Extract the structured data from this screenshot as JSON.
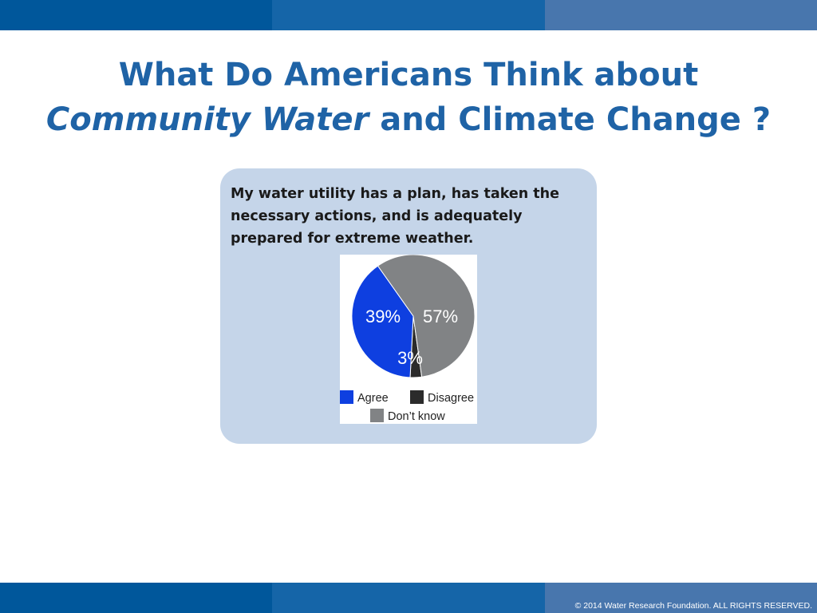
{
  "slide": {
    "title_line1": "What Do Americans Think about",
    "title_line2_italic": "Community Water",
    "title_line2_rest": " and Climate Change ?",
    "question": "My water utility has a plan, has taken the necessary actions, and is adequately prepared for extreme weather.",
    "footer": "© 2014 Water Research Foundation. ALL RIGHTS RESERVED."
  },
  "colors": {
    "band_dark": "#00579b",
    "band_mid": "#1565a8",
    "band_light": "#4876ad",
    "title": "#1f63a6",
    "card_bg": "#c5d5e9"
  },
  "chart_data": {
    "type": "pie",
    "title": "",
    "slices": [
      {
        "label": "Agree",
        "value": 39,
        "display": "39%",
        "color": "#0e3fe0"
      },
      {
        "label": "Disagree",
        "value": 3,
        "display": "3%",
        "color": "#2b2b2b"
      },
      {
        "label": "Don’t know",
        "value": 57,
        "display": "57%",
        "color": "#818385"
      }
    ],
    "legend": {
      "position": "bottom"
    }
  }
}
